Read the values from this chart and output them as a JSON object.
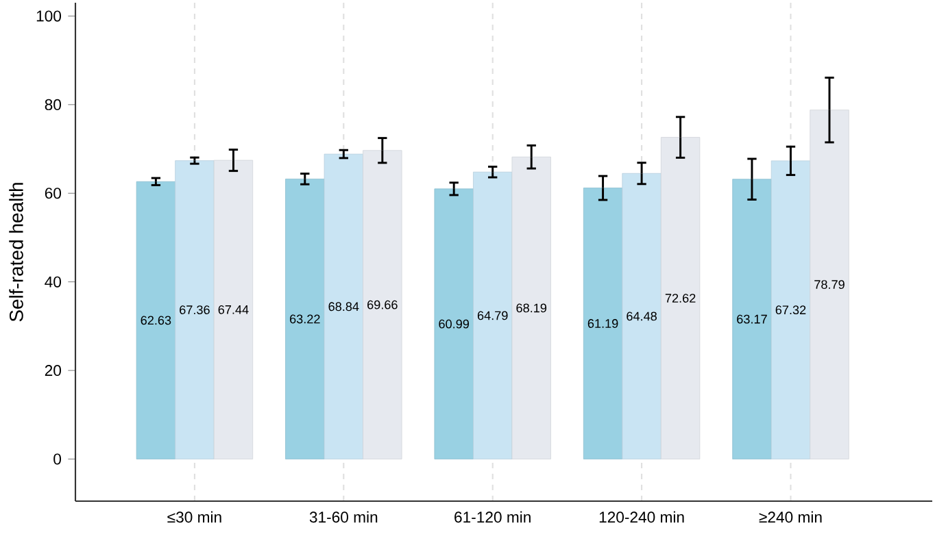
{
  "chart_data": {
    "type": "bar",
    "ylabel": "Self-rated health",
    "categories": [
      "≤30 min",
      "31-60 min",
      "61-120 min",
      "120-240 min",
      "≥240 min"
    ],
    "series": [
      {
        "color": "#99d1e3",
        "values": [
          62.63,
          63.22,
          60.99,
          61.19,
          63.17
        ],
        "errors": [
          0.8,
          1.2,
          1.4,
          2.7,
          4.6
        ]
      },
      {
        "color": "#c9e4f3",
        "values": [
          67.36,
          68.84,
          64.79,
          64.48,
          67.32
        ],
        "errors": [
          0.7,
          0.9,
          1.2,
          2.4,
          3.2
        ]
      },
      {
        "color": "#e6e9ef",
        "values": [
          67.44,
          69.66,
          68.19,
          72.62,
          78.79
        ],
        "errors": [
          2.4,
          2.8,
          2.6,
          4.6,
          7.3
        ]
      }
    ],
    "ylim": [
      -9.5,
      103
    ],
    "yticks": [
      0,
      20,
      40,
      60,
      80,
      100
    ],
    "grid": "x",
    "data_labels": true
  }
}
